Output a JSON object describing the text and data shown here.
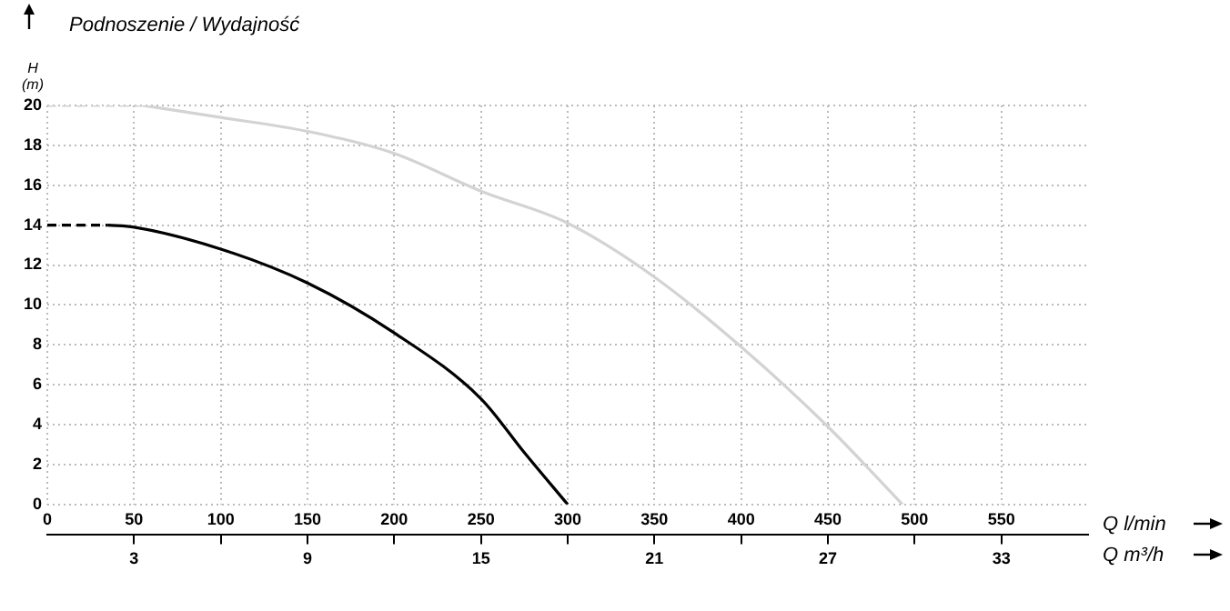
{
  "chart_data": {
    "type": "line",
    "title": "Podnoszenie / Wydajność",
    "xlabel": "Q l/min",
    "x2label": "Q m³/h",
    "ylabel": "H (m)",
    "series": [
      {
        "color": "#d3d3d3",
        "line_style": "dashed",
        "x": [
          0,
          55
        ],
        "values": [
          20,
          20
        ]
      },
      {
        "color": "#d3d3d3",
        "x": [
          55,
          100,
          150,
          200,
          250,
          300,
          350,
          400,
          450,
          493
        ],
        "values": [
          20,
          19.4,
          18.7,
          17.6,
          15.7,
          14.1,
          11.4,
          7.9,
          3.9,
          0
        ]
      },
      {
        "color": "#000000",
        "line_style": "dashed",
        "x": [
          0,
          35
        ],
        "values": [
          14,
          14
        ]
      },
      {
        "color": "#000000",
        "x": [
          35,
          50,
          100,
          150,
          200,
          250,
          275,
          300
        ],
        "values": [
          14,
          13.9,
          12.8,
          11.1,
          8.6,
          5.3,
          2.6,
          0
        ]
      }
    ],
    "xlim": [
      0,
      600
    ],
    "xticks": [
      0,
      50,
      100,
      150,
      200,
      250,
      300,
      350,
      400,
      450,
      500,
      550
    ],
    "x2lim": [
      0,
      36
    ],
    "x2ticks": [
      3,
      {
        "value": 6,
        "label": null
      },
      9,
      {
        "value": 12,
        "label": null
      },
      15,
      {
        "value": 18,
        "label": null
      },
      21,
      {
        "value": 24,
        "label": null
      },
      27,
      {
        "value": 30,
        "label": null
      },
      33
    ],
    "ylim": [
      0,
      20
    ],
    "yticks": [
      0,
      2,
      4,
      6,
      8,
      10,
      12,
      14,
      16,
      18,
      20
    ],
    "grid": true,
    "legend": false,
    "marker": "none"
  }
}
